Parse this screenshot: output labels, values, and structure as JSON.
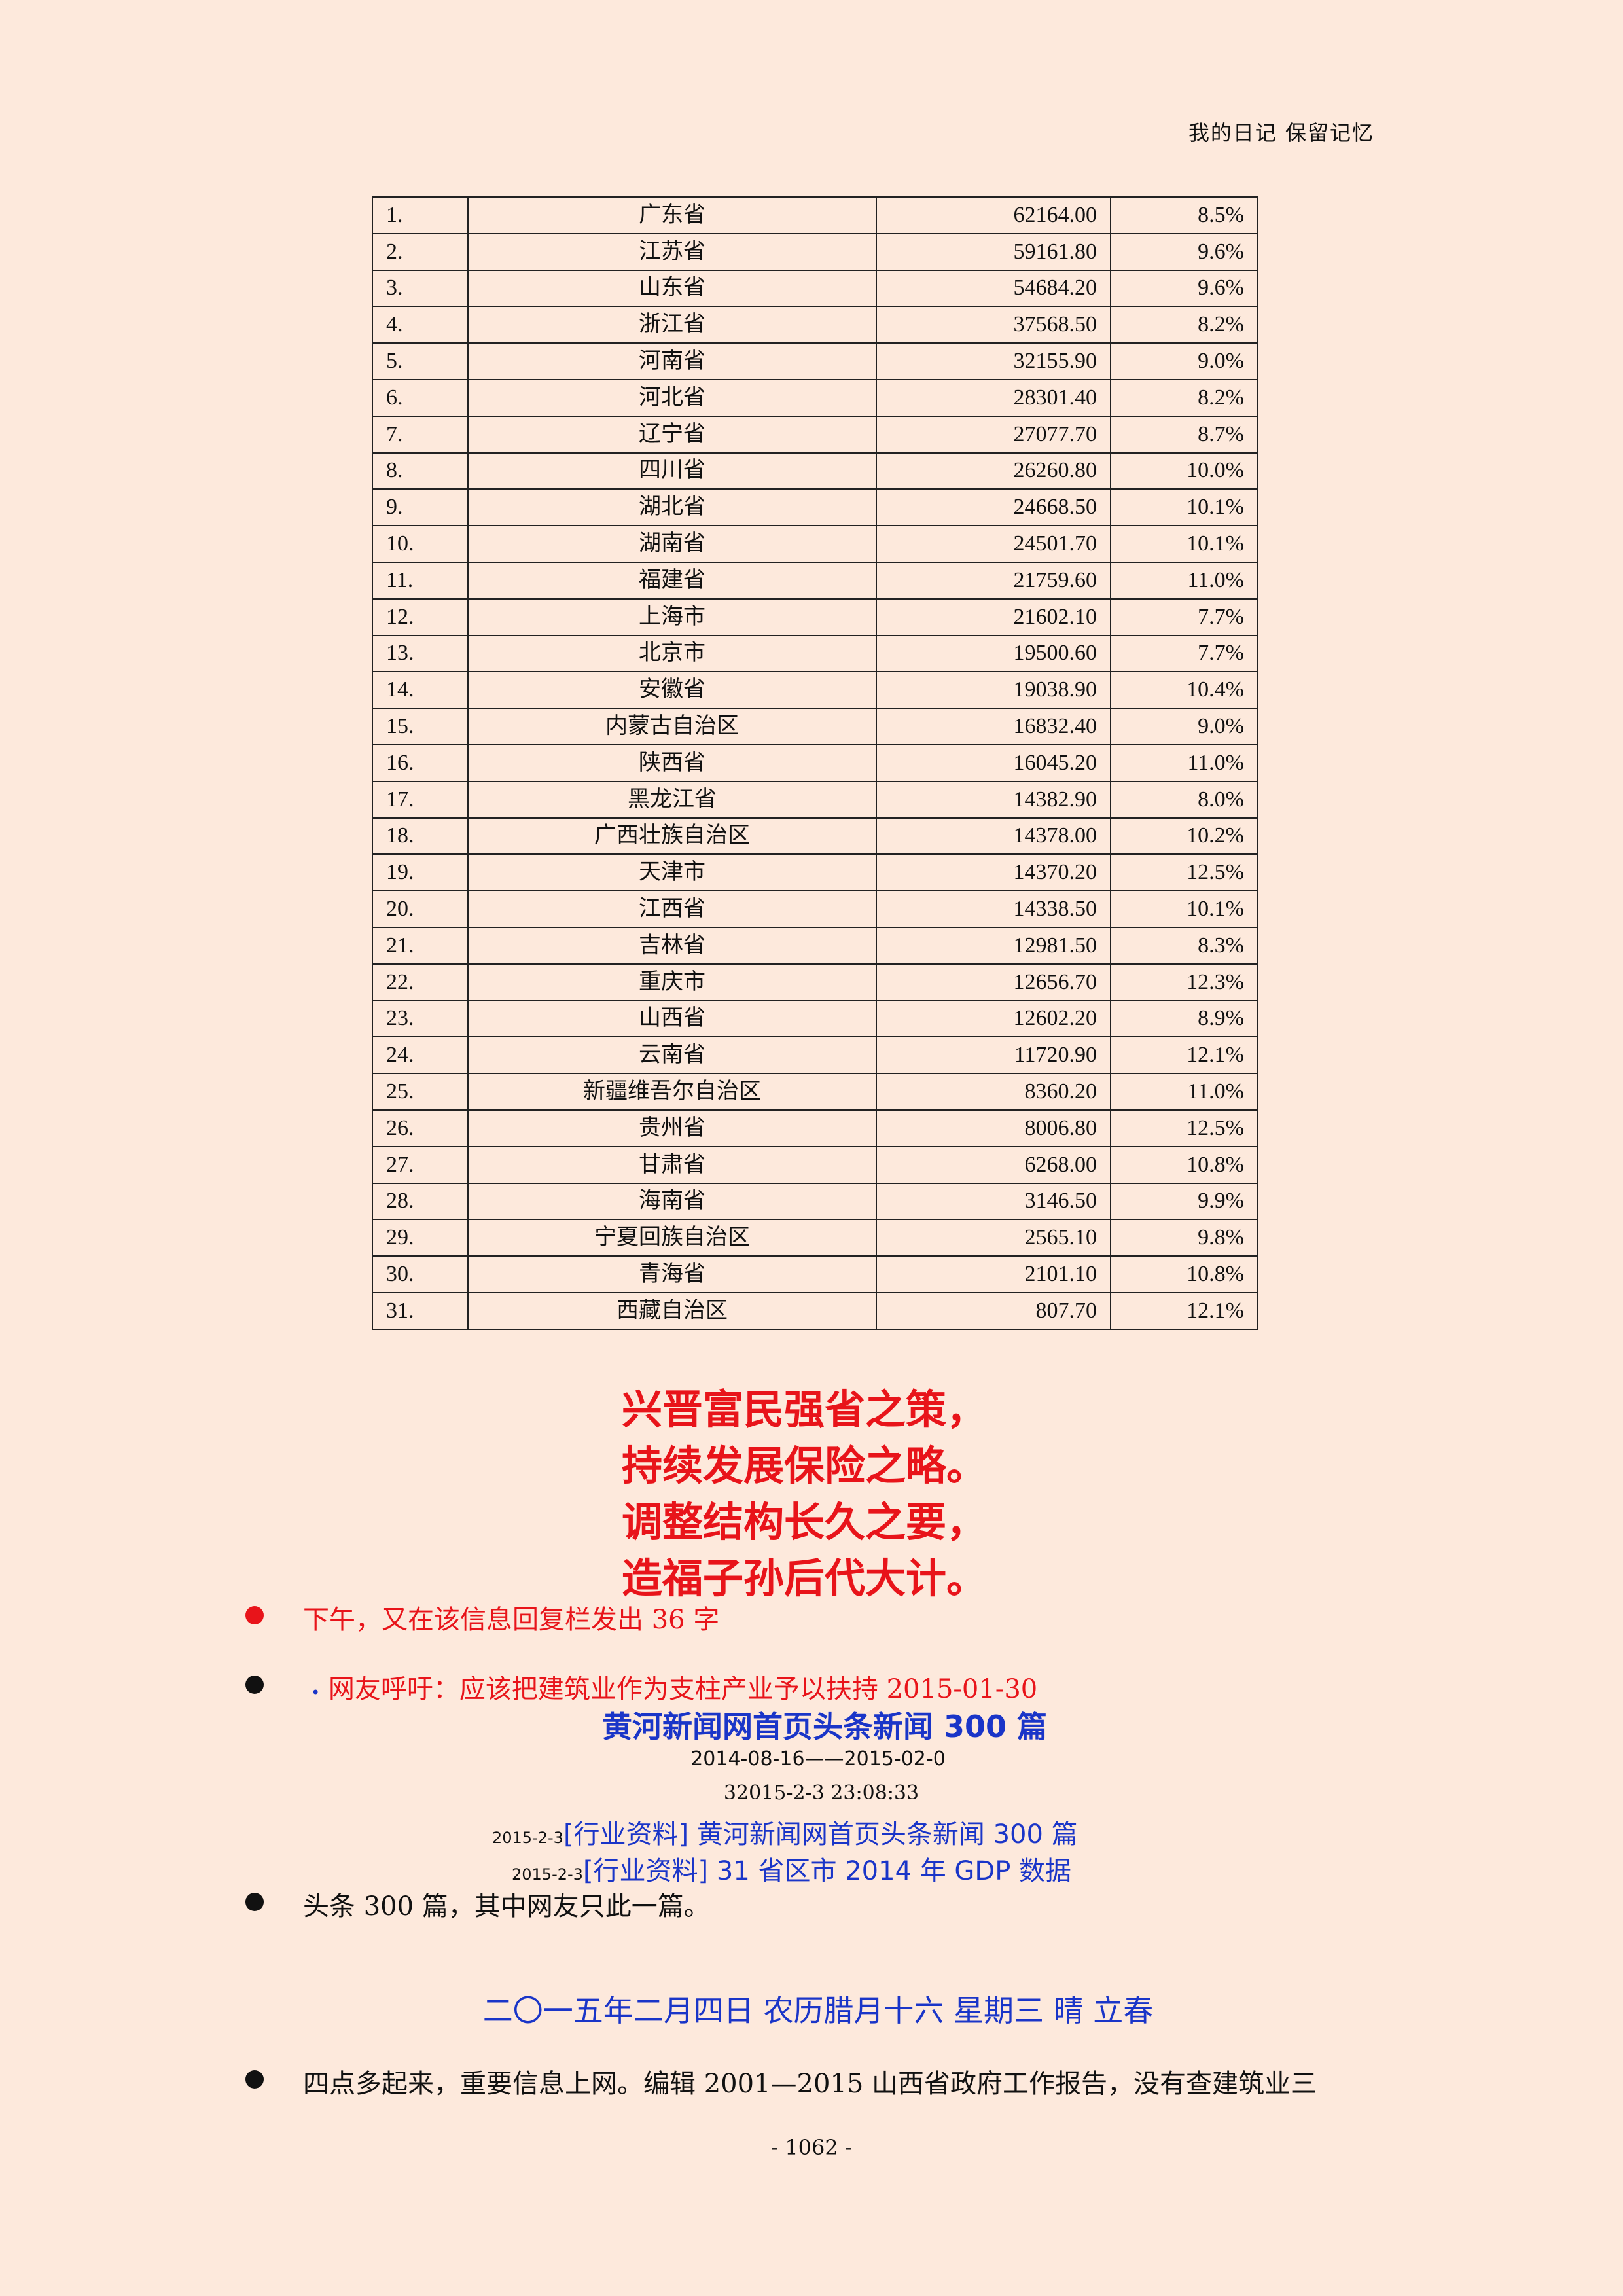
{
  "header": "我的日记 保留记忆",
  "table": [
    [
      "1.",
      "广东省",
      "62164.00",
      "8.5%"
    ],
    [
      "2.",
      "江苏省",
      "59161.80",
      "9.6%"
    ],
    [
      "3.",
      "山东省",
      "54684.20",
      "9.6%"
    ],
    [
      "4.",
      "浙江省",
      "37568.50",
      "8.2%"
    ],
    [
      "5.",
      "河南省",
      "32155.90",
      "9.0%"
    ],
    [
      "6.",
      "河北省",
      "28301.40",
      "8.2%"
    ],
    [
      "7.",
      "辽宁省",
      "27077.70",
      "8.7%"
    ],
    [
      "8.",
      "四川省",
      "26260.80",
      "10.0%"
    ],
    [
      "9.",
      "湖北省",
      "24668.50",
      "10.1%"
    ],
    [
      "10.",
      "湖南省",
      "24501.70",
      "10.1%"
    ],
    [
      "11.",
      "福建省",
      "21759.60",
      "11.0%"
    ],
    [
      "12.",
      "上海市",
      "21602.10",
      "7.7%"
    ],
    [
      "13.",
      "北京市",
      "19500.60",
      "7.7%"
    ],
    [
      "14.",
      "安徽省",
      "19038.90",
      "10.4%"
    ],
    [
      "15.",
      "内蒙古自治区",
      "16832.40",
      "9.0%"
    ],
    [
      "16.",
      "陕西省",
      "16045.20",
      "11.0%"
    ],
    [
      "17.",
      "黑龙江省",
      "14382.90",
      "8.0%"
    ],
    [
      "18.",
      "广西壮族自治区",
      "14378.00",
      "10.2%"
    ],
    [
      "19.",
      "天津市",
      "14370.20",
      "12.5%"
    ],
    [
      "20.",
      "江西省",
      "14338.50",
      "10.1%"
    ],
    [
      "21.",
      "吉林省",
      "12981.50",
      "8.3%"
    ],
    [
      "22.",
      "重庆市",
      "12656.70",
      "12.3%"
    ],
    [
      "23.",
      "山西省",
      "12602.20",
      "8.9%"
    ],
    [
      "24.",
      "云南省",
      "11720.90",
      "12.1%"
    ],
    [
      "25.",
      "新疆维吾尔自治区",
      "8360.20",
      "11.0%"
    ],
    [
      "26.",
      "贵州省",
      "8006.80",
      "12.5%"
    ],
    [
      "27.",
      "甘肃省",
      "6268.00",
      "10.8%"
    ],
    [
      "28.",
      "海南省",
      "3146.50",
      "9.9%"
    ],
    [
      "29.",
      "宁夏回族自治区",
      "2565.10",
      "9.8%"
    ],
    [
      "30.",
      "青海省",
      "2101.10",
      "10.8%"
    ],
    [
      "31.",
      "西藏自治区",
      "807.70",
      "12.1%"
    ]
  ],
  "poem": [
    "兴晋富民强省之策，",
    "持续发展保险之略。",
    "调整结构长久之要，",
    "造福子孙后代大计。"
  ],
  "bullet1": "下午，又在该信息回复栏发出 36 字",
  "bullet2": {
    "link": "网友呼吁：应该把建筑业作为支柱产业予以扶持",
    "date": "2015-01-30"
  },
  "news": {
    "title": "黄河新闻网首页头条新闻 300 篇",
    "range": "2014-08-16——2015-02-0",
    "time": "32015-2-3 23:08:33",
    "links": [
      {
        "date": "2015-2-3",
        "tag": "[行业资料]",
        "title": "黄河新闻网首页头条新闻 300 篇 "
      },
      {
        "date": "2015-2-3",
        "tag": "[行业资料]",
        "title": "31 省区市 2014 年 GDP 数据 "
      }
    ]
  },
  "bullet3": "头条 300 篇，其中网友只此一篇。",
  "day_heading": "二〇一五年二月四日  农历腊月十六  星期三  晴  立春",
  "bullet4": "四点多起来，重要信息上网。编辑 2001—2015 山西省政府工作报告，没有查建筑业三",
  "page_number": "- 1062 -",
  "colors": {
    "background": "#fde9dc",
    "red": "#e8141a",
    "blue": "#1a35c8"
  }
}
